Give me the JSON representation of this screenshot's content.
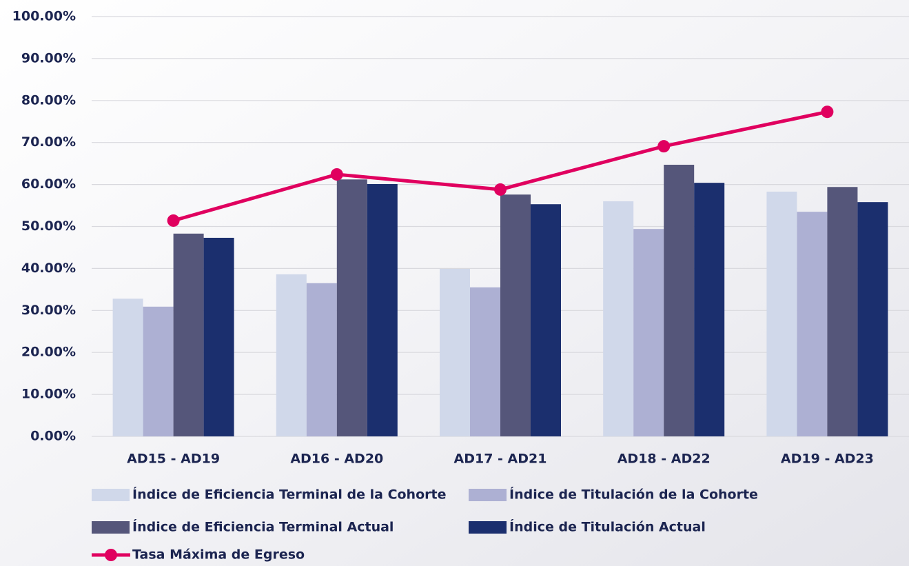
{
  "chart_data": {
    "type": "bar",
    "categories": [
      "AD15 - AD19",
      "AD16 - AD20",
      "AD17 - AD21",
      "AD18 - AD22",
      "AD19 - AD23"
    ],
    "series": [
      {
        "name": "Índice de Eficiencia Terminal de la Cohorte",
        "color": "#d0d8ea",
        "values": [
          32.8,
          38.6,
          39.9,
          56.0,
          58.3
        ]
      },
      {
        "name": "Índice de Titulación de la Cohorte",
        "color": "#adb0d3",
        "values": [
          30.9,
          36.5,
          35.5,
          49.4,
          53.5
        ]
      },
      {
        "name": "Índice de Eficiencia Terminal Actual",
        "color": "#55567a",
        "values": [
          48.3,
          61.2,
          57.6,
          64.7,
          59.4
        ]
      },
      {
        "name": "Índice de Titulación Actual",
        "color": "#1b2f6e",
        "values": [
          47.3,
          60.1,
          55.3,
          60.4,
          55.8
        ]
      },
      {
        "name": "Tasa Máxima de Egreso",
        "color": "#e0005f",
        "type": "line",
        "values": [
          51.4,
          62.4,
          58.8,
          69.1,
          77.3
        ]
      }
    ],
    "ylim": [
      0,
      100
    ],
    "yticks": [
      {
        "value": 0,
        "label": "0.00%"
      },
      {
        "value": 10,
        "label": "10.00%"
      },
      {
        "value": 20,
        "label": "20.00%"
      },
      {
        "value": 30,
        "label": "30.00%"
      },
      {
        "value": 40,
        "label": "40.00%"
      },
      {
        "value": 50,
        "label": "50.00%"
      },
      {
        "value": 60,
        "label": "60.00%"
      },
      {
        "value": 70,
        "label": "70.00%"
      },
      {
        "value": 80,
        "label": "80.00%"
      },
      {
        "value": 90,
        "label": "90.00%"
      },
      {
        "value": 100,
        "label": "100.00%"
      }
    ],
    "grid": true,
    "legend": "bottom"
  }
}
